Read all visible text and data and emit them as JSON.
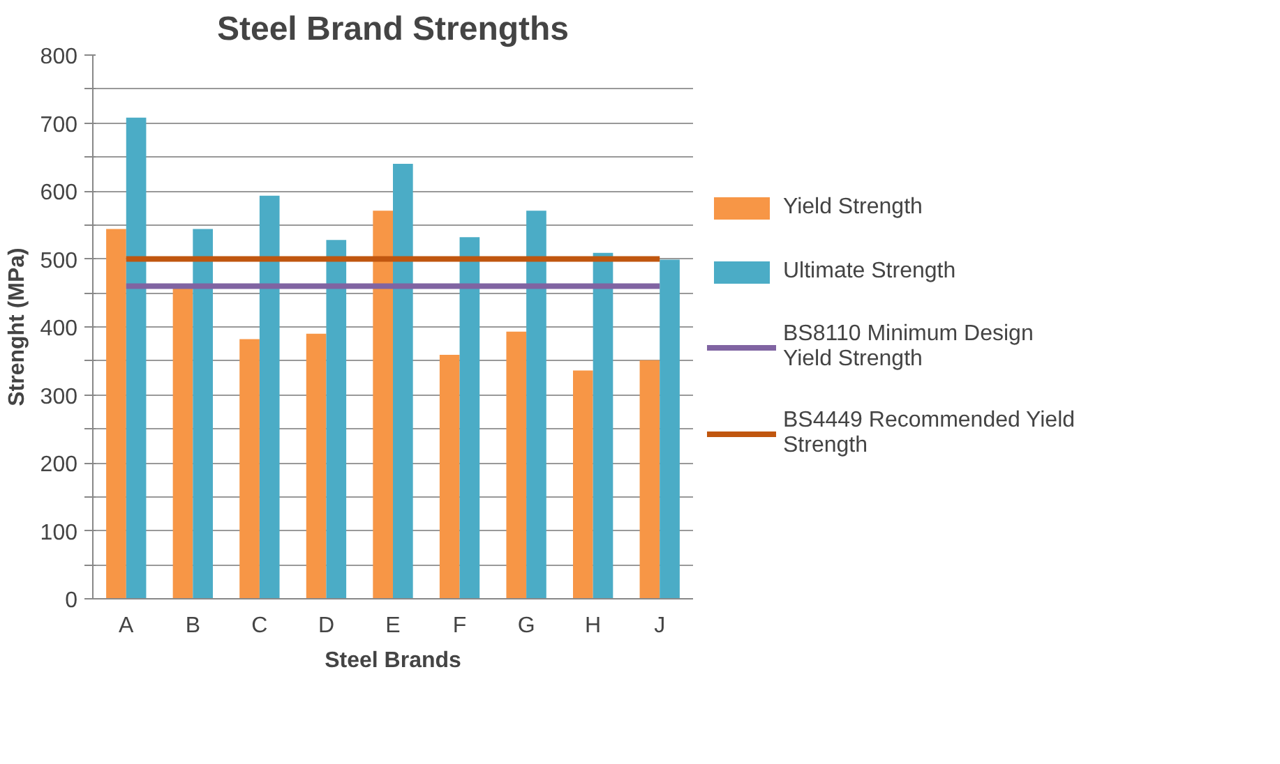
{
  "chart_data": {
    "type": "bar",
    "title": "Steel Brand Strengths",
    "xlabel": "Steel Brands",
    "ylabel": "Strenght (MPa)",
    "categories": [
      "A",
      "B",
      "C",
      "D",
      "E",
      "F",
      "G",
      "H",
      "J"
    ],
    "series": [
      {
        "name": "Yield Strength",
        "color": "#f79646",
        "values": [
          544,
          457,
          382,
          390,
          571,
          359,
          393,
          336,
          351
        ]
      },
      {
        "name": "Ultimate Strength",
        "color": "#4bacc6",
        "values": [
          708,
          544,
          593,
          528,
          640,
          532,
          571,
          509,
          499
        ]
      },
      {
        "name": "BS8110 Minimum Design Yield Strength",
        "type": "line",
        "color": "#8064a2",
        "values": [
          460,
          460,
          460,
          460,
          460,
          460,
          460,
          460,
          460
        ]
      },
      {
        "name": "BS4449 Recommended Yield Strength",
        "type": "line",
        "color": "#c0560f",
        "values": [
          500,
          500,
          500,
          500,
          500,
          500,
          500,
          500,
          500
        ]
      }
    ],
    "ylim": [
      0,
      800
    ],
    "yticks": [
      0,
      {
        "value": 50,
        "label": null
      },
      100,
      {
        "value": 150,
        "label": null
      },
      200,
      {
        "value": 250,
        "label": null
      },
      300,
      {
        "value": 350,
        "label": null
      },
      400,
      {
        "value": 450,
        "label": null
      },
      500,
      {
        "value": 550,
        "label": null
      },
      600,
      {
        "value": 650,
        "label": null
      },
      700,
      {
        "value": 750,
        "label": null
      },
      800
    ],
    "grid": "y",
    "legend": "right"
  }
}
